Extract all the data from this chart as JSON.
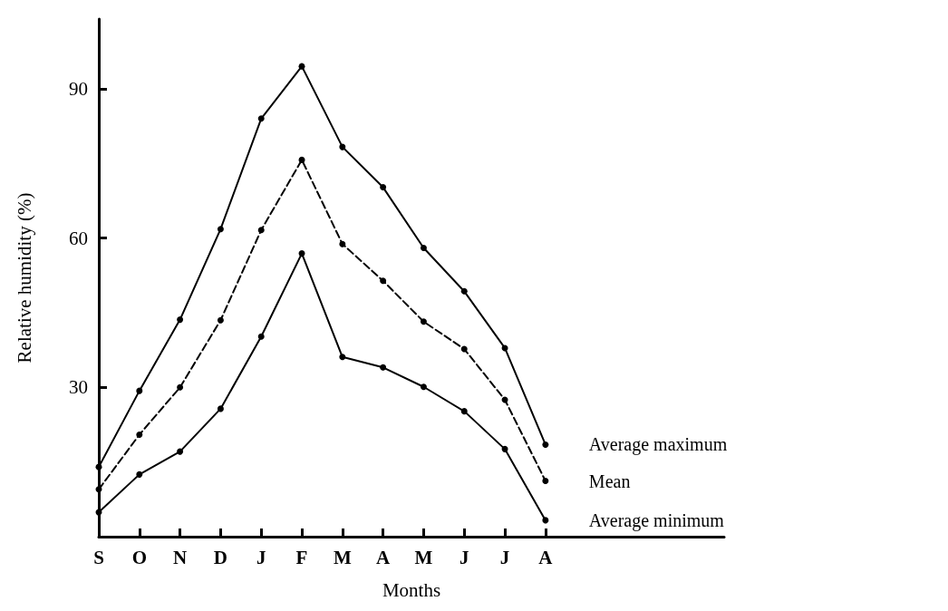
{
  "chart_data": {
    "type": "line",
    "xlabel": "Months",
    "ylabel": "Relative humidity (%)",
    "categories": [
      "S",
      "O",
      "N",
      "D",
      "J",
      "F",
      "M",
      "A",
      "M",
      "J",
      "J",
      "A"
    ],
    "series": [
      {
        "name": "Average maximum",
        "color": "#000000",
        "line_style": "solid",
        "values": [
          14,
          29.3,
          43.6,
          61.8,
          84,
          94.5,
          78.3,
          70.2,
          58,
          49.3,
          37.9,
          18.5
        ]
      },
      {
        "name": "Mean",
        "color": "#000000",
        "line_style": "dashed",
        "values": [
          9.5,
          20.5,
          30,
          43.5,
          61.6,
          75.7,
          58.8,
          51.4,
          43.2,
          37.7,
          27.5,
          11.2
        ]
      },
      {
        "name": "Average minimum",
        "color": "#000000",
        "line_style": "solid",
        "values": [
          4.9,
          12.5,
          17.1,
          25.7,
          40.2,
          56.9,
          36.1,
          34,
          30.1,
          25.2,
          17.6,
          3.3
        ]
      }
    ],
    "ylim": [
      0,
      104
    ],
    "yticks": [
      30,
      60,
      90
    ],
    "marker": "circle",
    "grid": false,
    "legend": false
  }
}
